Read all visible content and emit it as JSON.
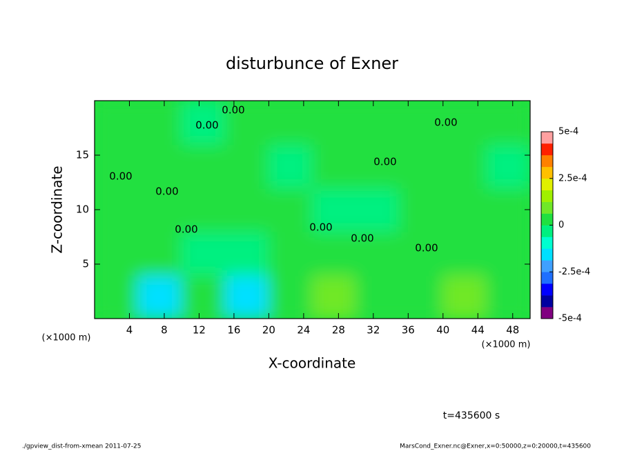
{
  "chart_data": {
    "type": "contour",
    "title": "disturbunce of Exner",
    "xlabel": "X-coordinate",
    "ylabel": "Z-coordinate",
    "x_unit": "(×1000 m)",
    "y_unit": "(×1000 m)",
    "xlim": [
      0,
      50
    ],
    "ylim": [
      0,
      20
    ],
    "xticks": [
      4,
      8,
      12,
      16,
      20,
      24,
      28,
      32,
      36,
      40,
      44,
      48
    ],
    "yticks": [
      5,
      10,
      15
    ],
    "x": [
      2.5,
      7.5,
      12.5,
      17.5,
      22.5,
      27.5,
      32.5,
      37.5,
      42.5,
      47.5
    ],
    "z": [
      2,
      6,
      10,
      14,
      18
    ],
    "values": [
      [
        3e-05,
        -0.00015,
        2e-05,
        -0.00014,
        4e-05,
        7e-05,
        3e-05,
        4e-05,
        7e-05,
        4e-05
      ],
      [
        2e-05,
        1e-05,
        -3e-05,
        -4e-05,
        2e-05,
        3e-05,
        2e-05,
        3e-05,
        3e-05,
        2e-05
      ],
      [
        1e-05,
        2e-05,
        1e-05,
        2e-05,
        1e-05,
        -2e-05,
        -3e-05,
        1e-05,
        1e-05,
        1e-05
      ],
      [
        1e-05,
        2e-05,
        1e-05,
        3e-05,
        -1e-05,
        2e-05,
        1e-05,
        2e-05,
        1e-05,
        -1e-05
      ],
      [
        1e-05,
        1e-05,
        -2e-05,
        1e-05,
        2e-05,
        1e-05,
        2e-05,
        1e-05,
        1e-05,
        1e-05
      ]
    ],
    "clim": [
      -0.0005,
      0.0005
    ],
    "colors": [
      "#800080",
      "#0000a0",
      "#0000ff",
      "#1e6fff",
      "#3fa0ff",
      "#00e0ff",
      "#00ffd0",
      "#00f080",
      "#20e040",
      "#70e828",
      "#a0f000",
      "#e0f000",
      "#ffc000",
      "#ff8000",
      "#ff2000",
      "#ffa0a0"
    ],
    "cticks": [
      {
        "value": -0.0005,
        "label": "-5e-4"
      },
      {
        "value": -0.00025,
        "label": "-2.5e-4"
      },
      0,
      {
        "value": 0.00025,
        "label": "2.5e-4"
      },
      {
        "value": 0.0005,
        "label": "5e-4"
      }
    ],
    "annotations": [
      "0.00",
      "0.00",
      "0.00",
      "0.00",
      "0.00",
      "0.00",
      "0.00",
      "0.00",
      "0.00",
      "0.00"
    ],
    "time_label": "t=435600 s",
    "footer_left": "./gpview_dist-from-xmean  2011-07-25",
    "footer_right": "MarsCond_Exner.nc@Exner,x=0:50000,z=0:20000,t=435600"
  }
}
